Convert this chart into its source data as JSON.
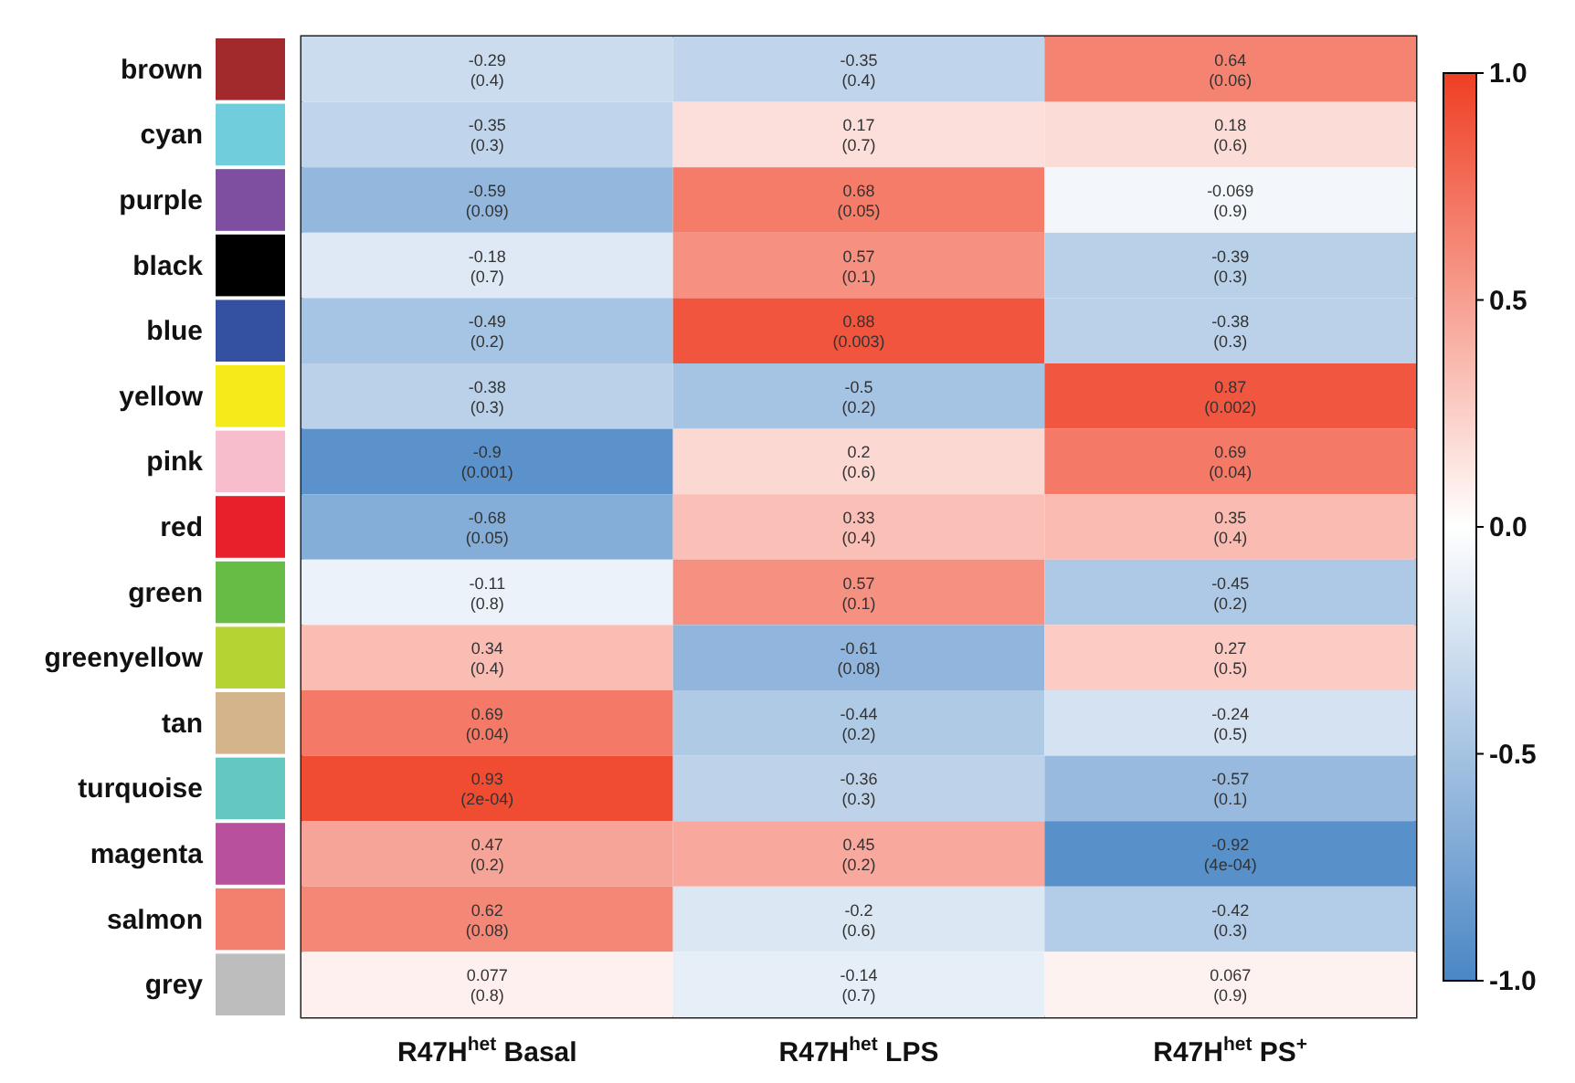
{
  "chart_data": {
    "type": "heatmap",
    "categories": [
      "R47H$^{het}$ Basal",
      "R47H$^{het}$ LPS",
      "R47H$^{het}$ PS$^{+}$"
    ],
    "y_categories": [
      "brown",
      "cyan",
      "purple",
      "black",
      "blue",
      "yellow",
      "pink",
      "red",
      "green",
      "greenyellow",
      "tan",
      "turquoise",
      "magenta",
      "salmon",
      "grey"
    ],
    "cells": [
      [
        -0.29,
        -0.35,
        0.64
      ],
      [
        -0.35,
        0.17,
        0.18
      ],
      [
        -0.59,
        0.68,
        -0.069
      ],
      [
        -0.18,
        0.57,
        -0.39
      ],
      [
        -0.49,
        0.88,
        -0.38
      ],
      [
        -0.38,
        -0.5,
        0.87
      ],
      [
        -0.9,
        0.2,
        0.69
      ],
      [
        -0.68,
        0.33,
        0.35
      ],
      [
        -0.11,
        0.57,
        -0.45
      ],
      [
        0.34,
        -0.61,
        0.27
      ],
      [
        0.69,
        -0.44,
        -0.24
      ],
      [
        0.93,
        -0.36,
        -0.57
      ],
      [
        0.47,
        0.45,
        -0.92
      ],
      [
        0.62,
        -0.2,
        -0.42
      ],
      [
        0.077,
        -0.14,
        0.067
      ]
    ],
    "cell_labels": [
      [
        "-0.29\n(0.4)",
        "-0.35\n(0.4)",
        "0.64\n(0.06)"
      ],
      [
        "-0.35\n(0.3)",
        "0.17\n(0.7)",
        "0.18\n(0.6)"
      ],
      [
        "-0.59\n(0.09)",
        "0.68\n(0.05)",
        "-0.069\n(0.9)"
      ],
      [
        "-0.18\n(0.7)",
        "0.57\n(0.1)",
        "-0.39\n(0.3)"
      ],
      [
        "-0.49\n(0.2)",
        "0.88\n(0.003)",
        "-0.38\n(0.3)"
      ],
      [
        "-0.38\n(0.3)",
        "-0.5\n(0.2)",
        "0.87\n(0.002)"
      ],
      [
        "-0.9\n(0.001)",
        "0.2\n(0.6)",
        "0.69\n(0.04)"
      ],
      [
        "-0.68\n(0.05)",
        "0.33\n(0.4)",
        "0.35\n(0.4)"
      ],
      [
        "-0.11\n(0.8)",
        "0.57\n(0.1)",
        "-0.45\n(0.2)"
      ],
      [
        "0.34\n(0.4)",
        "-0.61\n(0.08)",
        "0.27\n(0.5)"
      ],
      [
        "0.69\n(0.04)",
        "-0.44\n(0.2)",
        "-0.24\n(0.5)"
      ],
      [
        "0.93\n(2e-04)",
        "-0.36\n(0.3)",
        "-0.57\n(0.1)"
      ],
      [
        "0.47\n(0.2)",
        "0.45\n(0.2)",
        "-0.92\n(4e-04)"
      ],
      [
        "0.62\n(0.08)",
        "-0.2\n(0.6)",
        "-0.42\n(0.3)"
      ],
      [
        "0.077\n(0.8)",
        "-0.14\n(0.7)",
        "0.067\n(0.9)"
      ]
    ],
    "clim": [
      -1,
      1
    ],
    "cticks": [
      {
        "value": -1,
        "label": "-1.0"
      },
      {
        "value": -0.5,
        "label": "-0.5"
      },
      {
        "value": 0,
        "label": "0.0"
      },
      {
        "value": 0.5,
        "label": "0.5"
      },
      {
        "value": 1,
        "label": "1.0"
      }
    ]
  }
}
